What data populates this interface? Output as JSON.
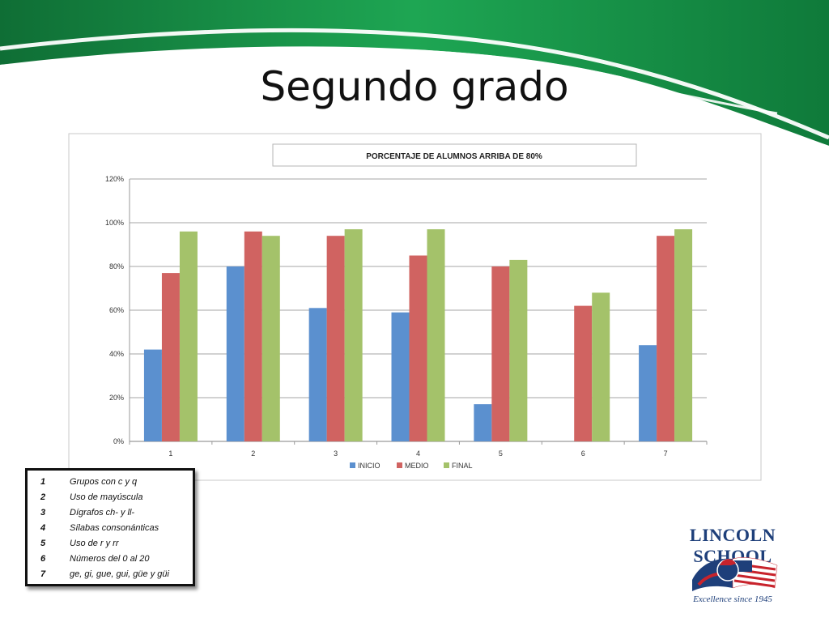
{
  "slide": {
    "title": "Segundo grado"
  },
  "theme": {
    "green_dark": "#0f7a3a",
    "green_light": "#22b058",
    "series_colors": [
      "#5b90cf",
      "#d06361",
      "#a4c26a"
    ]
  },
  "chart_data": {
    "type": "bar",
    "title": "PORCENTAJE DE ALUMNOS ARRIBA DE 80%",
    "categories": [
      "1",
      "2",
      "3",
      "4",
      "5",
      "6",
      "7"
    ],
    "series": [
      {
        "name": "INICIO",
        "values": [
          0.42,
          0.8,
          0.61,
          0.59,
          0.17,
          0.0,
          0.44
        ]
      },
      {
        "name": "MEDIO",
        "values": [
          0.77,
          0.96,
          0.94,
          0.85,
          0.8,
          0.62,
          0.94
        ]
      },
      {
        "name": "FINAL",
        "values": [
          0.96,
          0.94,
          0.97,
          0.97,
          0.83,
          0.68,
          0.97
        ]
      }
    ],
    "ylim": [
      0,
      1.2
    ],
    "yticks": [
      "0%",
      "20%",
      "40%",
      "60%",
      "80%",
      "100%",
      "120%"
    ],
    "grid": true,
    "legend_position": "bottom"
  },
  "key_legend": [
    {
      "num": "1",
      "text": "Grupos  con c y q"
    },
    {
      "num": "2",
      "text": "Uso de mayúscula"
    },
    {
      "num": "3",
      "text": "Dígrafos ch- y ll-"
    },
    {
      "num": "4",
      "text": "Sílabas consonánticas"
    },
    {
      "num": "5",
      "text": "Uso de r y rr"
    },
    {
      "num": "6",
      "text": "Números del 0 al 20"
    },
    {
      "num": "7",
      "text": "  ge, gi, gue, gui, güe y güi"
    }
  ],
  "logo": {
    "name": "LINCOLN SCHOOL",
    "tagline": "Excellence since 1945"
  }
}
